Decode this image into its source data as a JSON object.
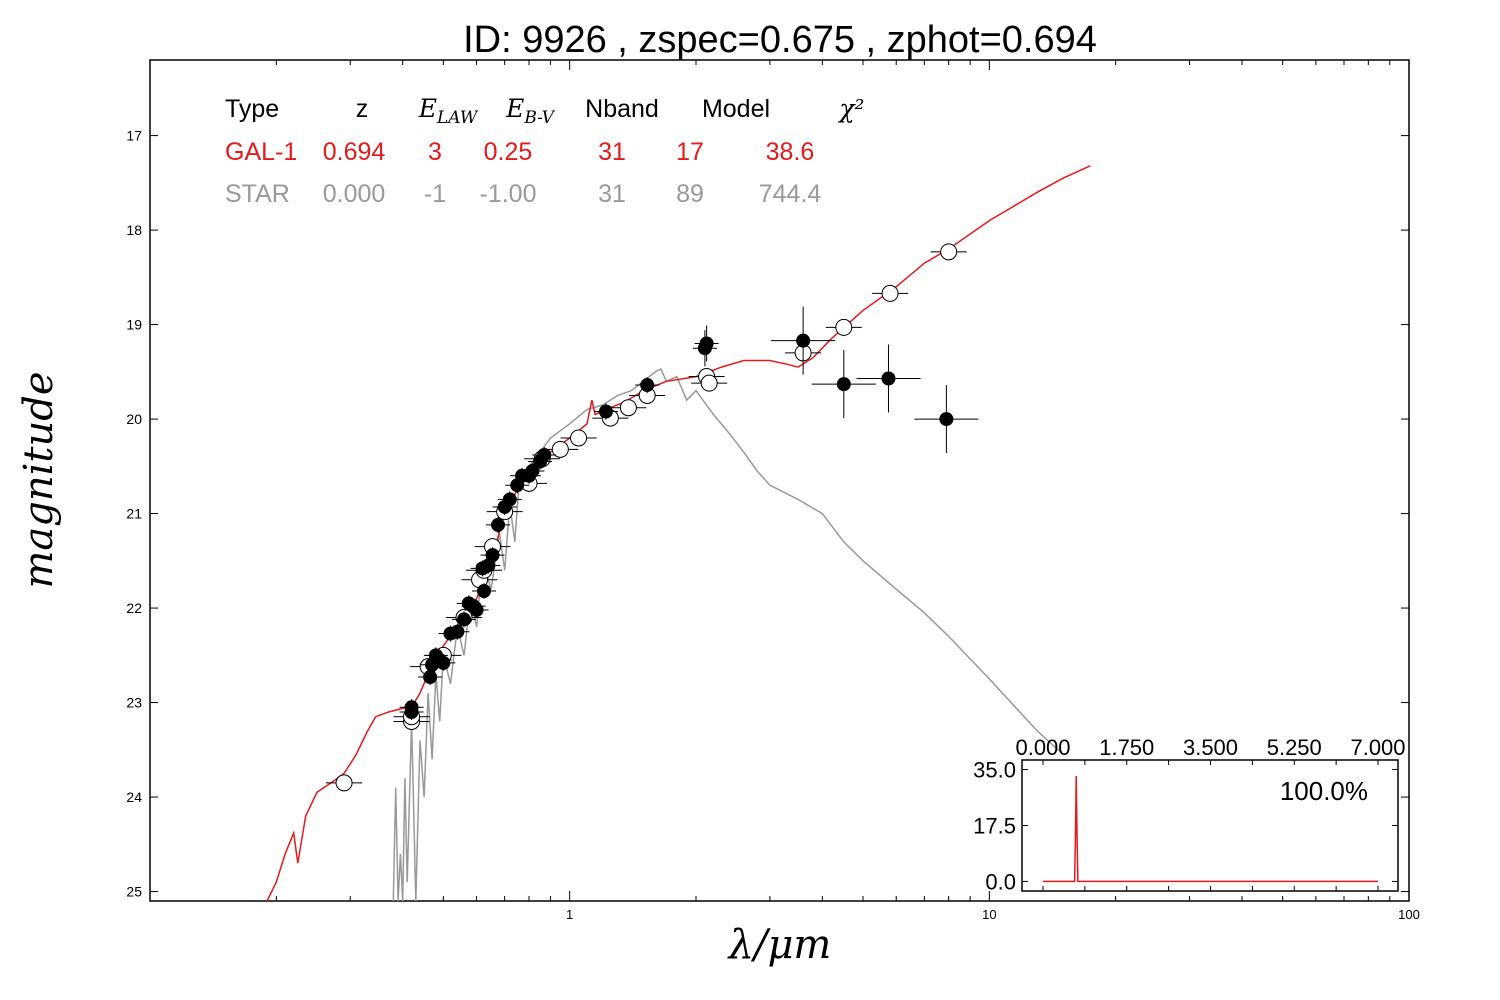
{
  "chart_data": [
    {
      "type": "scatter",
      "title": "ID:  9926  , zspec=0.675 , zphot=0.694",
      "xlabel": "λ/μm",
      "ylabel": "magnitude",
      "x_scale": "log",
      "xlim": [
        0.1,
        100
      ],
      "ylim": [
        25.1,
        16.2
      ],
      "y_inverted": true,
      "x_tick_labels": [
        "1",
        "10",
        "100"
      ],
      "y_ticks": [
        17,
        18,
        19,
        20,
        21,
        22,
        23,
        24,
        25
      ],
      "colors": {
        "galaxy": "#e41a1c",
        "star": "#999999",
        "axes": "#000000"
      },
      "fit_table": {
        "headers": [
          "Type",
          "z",
          "E_LAW",
          "E_B-V",
          "Nband",
          "Model",
          "χ²"
        ],
        "rows": [
          {
            "name": "galaxy",
            "values": [
              "GAL-1",
              "0.694",
              "3",
              "0.25",
              "31",
              "17",
              "38.6"
            ]
          },
          {
            "name": "star",
            "values": [
              "STAR",
              "0.000",
              "-1",
              "-1.00",
              "31",
              "89",
              "744.4"
            ]
          }
        ]
      },
      "observed_points": [
        [
          0.42,
          23.05
        ],
        [
          0.42,
          23.1
        ],
        [
          0.465,
          22.73
        ],
        [
          0.47,
          22.6
        ],
        [
          0.48,
          22.5
        ],
        [
          0.49,
          22.55
        ],
        [
          0.5,
          22.58
        ],
        [
          0.52,
          22.27
        ],
        [
          0.54,
          22.25
        ],
        [
          0.56,
          22.12
        ],
        [
          0.575,
          21.95
        ],
        [
          0.59,
          21.98
        ],
        [
          0.6,
          22.02
        ],
        [
          0.62,
          21.58
        ],
        [
          0.625,
          21.82
        ],
        [
          0.64,
          21.55
        ],
        [
          0.655,
          21.44
        ],
        [
          0.675,
          21.12
        ],
        [
          0.7,
          20.93
        ],
        [
          0.72,
          20.85
        ],
        [
          0.75,
          20.7
        ],
        [
          0.77,
          20.6
        ],
        [
          0.8,
          20.6
        ],
        [
          0.815,
          20.55
        ],
        [
          0.85,
          20.45
        ],
        [
          0.87,
          20.38
        ],
        [
          1.22,
          19.92
        ],
        [
          1.53,
          19.64
        ],
        [
          2.1,
          19.25
        ],
        [
          2.12,
          19.2
        ],
        [
          3.6,
          19.17
        ],
        [
          4.5,
          19.63
        ],
        [
          5.75,
          19.57
        ],
        [
          7.9,
          20.0
        ]
      ],
      "model_points": [
        [
          0.29,
          23.85
        ],
        [
          0.42,
          23.2
        ],
        [
          0.42,
          23.15
        ],
        [
          0.46,
          22.62
        ],
        [
          0.5,
          22.5
        ],
        [
          0.56,
          22.1
        ],
        [
          0.61,
          21.7
        ],
        [
          0.625,
          21.6
        ],
        [
          0.655,
          21.35
        ],
        [
          0.7,
          20.98
        ],
        [
          0.8,
          20.68
        ],
        [
          0.86,
          20.42
        ],
        [
          0.95,
          20.32
        ],
        [
          1.05,
          20.2
        ],
        [
          1.25,
          19.99
        ],
        [
          1.38,
          19.88
        ],
        [
          1.53,
          19.75
        ],
        [
          2.12,
          19.55
        ],
        [
          2.15,
          19.62
        ],
        [
          3.6,
          19.3
        ],
        [
          4.5,
          19.03
        ],
        [
          5.8,
          18.67
        ],
        [
          8.0,
          18.23
        ]
      ],
      "galaxy_sed": [
        [
          0.19,
          25.1
        ],
        [
          0.2,
          24.9
        ],
        [
          0.21,
          24.6
        ],
        [
          0.22,
          24.38
        ],
        [
          0.225,
          24.7
        ],
        [
          0.235,
          24.2
        ],
        [
          0.25,
          23.95
        ],
        [
          0.27,
          23.85
        ],
        [
          0.29,
          23.75
        ],
        [
          0.31,
          23.55
        ],
        [
          0.33,
          23.3
        ],
        [
          0.345,
          23.15
        ],
        [
          0.37,
          23.1
        ],
        [
          0.41,
          23.05
        ],
        [
          0.42,
          23.05
        ],
        [
          0.44,
          22.9
        ],
        [
          0.47,
          22.6
        ],
        [
          0.5,
          22.4
        ],
        [
          0.55,
          22.15
        ],
        [
          0.6,
          21.9
        ],
        [
          0.65,
          21.5
        ],
        [
          0.7,
          21.0
        ],
        [
          0.75,
          20.75
        ],
        [
          0.8,
          20.55
        ],
        [
          0.85,
          20.45
        ],
        [
          0.9,
          20.35
        ],
        [
          1.0,
          20.2
        ],
        [
          1.1,
          20.05
        ],
        [
          1.13,
          19.8
        ],
        [
          1.15,
          19.95
        ],
        [
          1.25,
          19.88
        ],
        [
          1.35,
          19.82
        ],
        [
          1.5,
          19.7
        ],
        [
          1.7,
          19.6
        ],
        [
          2.0,
          19.55
        ],
        [
          2.3,
          19.45
        ],
        [
          2.6,
          19.38
        ],
        [
          3.0,
          19.38
        ],
        [
          3.3,
          19.42
        ],
        [
          3.5,
          19.45
        ],
        [
          3.8,
          19.35
        ],
        [
          4.2,
          19.15
        ],
        [
          5.0,
          18.85
        ],
        [
          6.0,
          18.6
        ],
        [
          7.0,
          18.35
        ],
        [
          8.0,
          18.2
        ],
        [
          10.0,
          17.9
        ],
        [
          13.0,
          17.6
        ],
        [
          15.0,
          17.45
        ],
        [
          17.4,
          17.32
        ]
      ],
      "star_sed": [
        [
          0.38,
          25.1
        ],
        [
          0.385,
          23.9
        ],
        [
          0.39,
          25.1
        ],
        [
          0.395,
          24.6
        ],
        [
          0.4,
          25.1
        ],
        [
          0.405,
          23.8
        ],
        [
          0.41,
          24.9
        ],
        [
          0.42,
          23.2
        ],
        [
          0.43,
          25.1
        ],
        [
          0.44,
          23.4
        ],
        [
          0.45,
          24.0
        ],
        [
          0.46,
          22.9
        ],
        [
          0.47,
          23.6
        ],
        [
          0.48,
          22.7
        ],
        [
          0.49,
          23.2
        ],
        [
          0.5,
          22.5
        ],
        [
          0.52,
          22.8
        ],
        [
          0.54,
          22.2
        ],
        [
          0.56,
          22.5
        ],
        [
          0.58,
          21.9
        ],
        [
          0.6,
          22.2
        ],
        [
          0.62,
          21.5
        ],
        [
          0.65,
          21.8
        ],
        [
          0.68,
          21.2
        ],
        [
          0.7,
          21.6
        ],
        [
          0.72,
          20.9
        ],
        [
          0.74,
          21.3
        ],
        [
          0.76,
          20.6
        ],
        [
          0.8,
          20.5
        ],
        [
          0.85,
          20.35
        ],
        [
          0.9,
          20.2
        ],
        [
          1.0,
          20.05
        ],
        [
          1.1,
          19.9
        ],
        [
          1.2,
          19.85
        ],
        [
          1.3,
          19.75
        ],
        [
          1.4,
          19.7
        ],
        [
          1.5,
          19.6
        ],
        [
          1.6,
          19.5
        ],
        [
          1.65,
          19.47
        ],
        [
          1.7,
          19.6
        ],
        [
          1.8,
          19.55
        ],
        [
          1.9,
          19.8
        ],
        [
          2.0,
          19.7
        ],
        [
          2.2,
          19.95
        ],
        [
          2.4,
          20.15
        ],
        [
          2.6,
          20.35
        ],
        [
          2.8,
          20.55
        ],
        [
          3.0,
          20.7
        ],
        [
          3.5,
          20.85
        ],
        [
          4.0,
          21.0
        ],
        [
          4.5,
          21.3
        ],
        [
          5.0,
          21.5
        ],
        [
          6.0,
          21.8
        ],
        [
          7.0,
          22.05
        ],
        [
          8.0,
          22.3
        ],
        [
          10.0,
          22.75
        ],
        [
          13.0,
          23.3
        ],
        [
          15.0,
          23.55
        ]
      ]
    },
    {
      "type": "line",
      "name": "pdz_inset",
      "x_tick_labels": [
        "0.000",
        "1.750",
        "3.500",
        "5.250",
        "7.000"
      ],
      "y_tick_labels": [
        "0.0",
        "17.5",
        "35.0"
      ],
      "xlim": [
        0,
        7
      ],
      "ylim": [
        -3,
        38
      ],
      "annotation": "100.0%",
      "x": [
        0.0,
        0.66,
        0.68,
        0.694,
        0.71,
        0.73,
        7.0
      ],
      "y": [
        0.0,
        0.0,
        15.0,
        33.0,
        15.0,
        0.0,
        0.0
      ],
      "color": "#e41a1c"
    }
  ]
}
